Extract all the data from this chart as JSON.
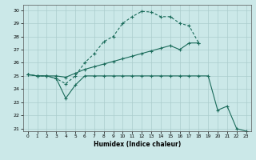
{
  "xlabel": "Humidex (Indice chaleur)",
  "bg_color": "#cbe8e8",
  "grid_color": "#aacccc",
  "line_color": "#1a6b5a",
  "ylim": [
    20.8,
    30.4
  ],
  "xlim": [
    -0.5,
    23.5
  ],
  "yticks": [
    21,
    22,
    23,
    24,
    25,
    26,
    27,
    28,
    29,
    30
  ],
  "xticks": [
    0,
    1,
    2,
    3,
    4,
    5,
    6,
    7,
    8,
    9,
    10,
    11,
    12,
    13,
    14,
    15,
    16,
    17,
    18,
    19,
    20,
    21,
    22,
    23
  ],
  "line1_x": [
    0,
    1,
    2,
    3,
    4,
    5,
    6,
    7,
    8,
    9,
    10,
    11,
    12,
    13,
    14,
    15,
    16,
    17,
    18
  ],
  "line1_y": [
    25.1,
    25.0,
    25.0,
    24.8,
    24.4,
    25.0,
    26.0,
    26.7,
    27.6,
    28.0,
    29.0,
    29.5,
    29.9,
    29.85,
    29.5,
    29.5,
    29.0,
    28.8,
    27.5
  ],
  "line2_x": [
    0,
    1,
    2,
    3,
    4,
    5,
    6,
    7,
    8,
    9,
    10,
    11,
    12,
    13,
    14,
    15,
    16,
    17,
    18
  ],
  "line2_y": [
    25.1,
    25.0,
    25.0,
    25.0,
    24.9,
    25.2,
    25.5,
    25.7,
    25.9,
    26.1,
    26.3,
    26.5,
    26.7,
    26.9,
    27.1,
    27.3,
    27.0,
    27.5,
    27.5
  ],
  "line3_x": [
    0,
    1,
    2,
    3,
    4,
    5,
    6,
    7,
    8,
    9,
    10,
    11,
    12,
    13,
    14,
    15,
    16,
    17,
    18,
    19,
    20,
    21,
    22,
    23
  ],
  "line3_y": [
    25.1,
    25.0,
    25.0,
    24.8,
    23.3,
    24.3,
    25.0,
    25.0,
    25.0,
    25.0,
    25.0,
    25.0,
    25.0,
    25.0,
    25.0,
    25.0,
    25.0,
    25.0,
    25.0,
    25.0,
    22.4,
    22.7,
    21.0,
    20.8
  ]
}
